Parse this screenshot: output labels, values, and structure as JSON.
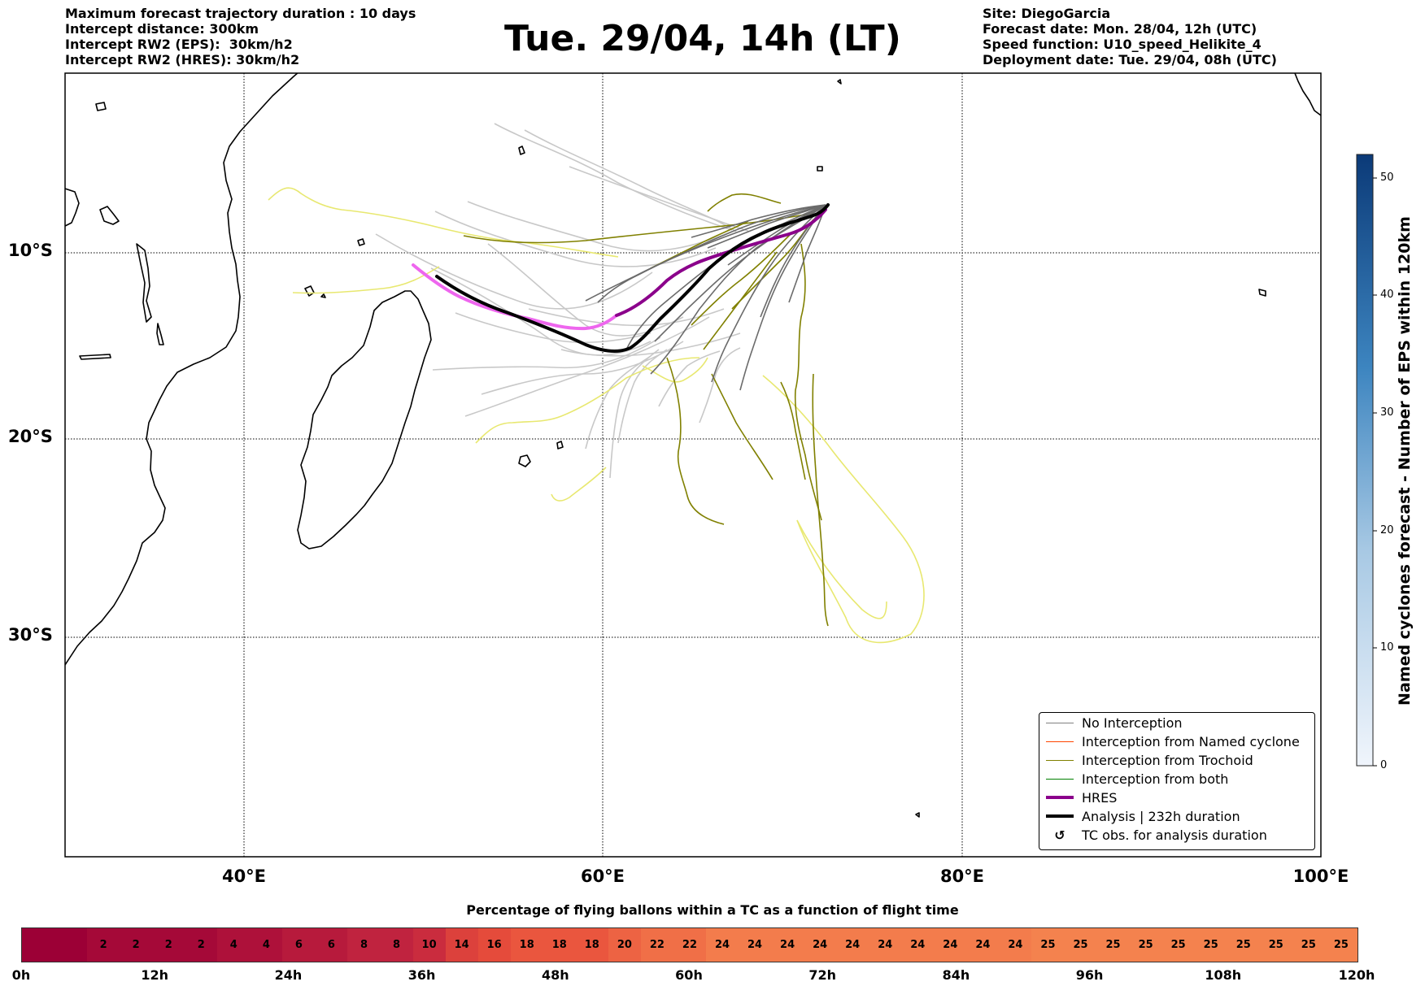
{
  "header": {
    "left_lines": [
      "Maximum forecast trajectory duration : 10 days",
      "Intercept distance: 300km",
      "Intercept RW2 (EPS):  30km/h2",
      "Intercept RW2 (HRES): 30km/h2"
    ],
    "title": "Tue. 29/04, 14h (LT)",
    "right_lines": [
      "Site: DiegoGarcia",
      "Forecast date: Mon. 28/04, 12h (UTC)",
      "Speed function: U10_speed_Helikite_4",
      "Deployment date: Tue. 29/04, 08h (UTC)"
    ]
  },
  "map": {
    "lat_labels": [
      "10°S",
      "20°S",
      "30°S"
    ],
    "lon_labels": [
      "40°E",
      "60°E",
      "80°E",
      "100°E"
    ],
    "colors": {
      "no_interception": "#808080",
      "named_cyclone": "#ff4500",
      "trochoid": "#808000",
      "both": "#008000",
      "hres": "#8b008b",
      "analysis": "#000000",
      "eps_light": "#c8c8c8",
      "yellow": "#e8e870"
    }
  },
  "legend": {
    "items": [
      {
        "label": "No Interception",
        "color": "#808080",
        "width": 1
      },
      {
        "label": "Interception from Named cyclone",
        "color": "#ff4500",
        "width": 1
      },
      {
        "label": "Interception from Trochoid",
        "color": "#808000",
        "width": 1
      },
      {
        "label": "Interception from both",
        "color": "#008000",
        "width": 1
      },
      {
        "label": "HRES",
        "color": "#8b008b",
        "width": 4
      },
      {
        "label": "Analysis | 232h duration",
        "color": "#000000",
        "width": 4
      }
    ],
    "tc_obs_label": "TC obs. for analysis duration",
    "tc_obs_symbol": "↺"
  },
  "colorbar_right": {
    "label": "Named cyclones forecast - Number of EPS within 120km",
    "ticks": [
      "0",
      "10",
      "20",
      "30",
      "40",
      "50"
    ],
    "min": 0,
    "max": 52,
    "color_low": "#f0f5fc",
    "color_high": "#0b3a78"
  },
  "percentage_bar": {
    "title": "Percentage of flying ballons within a TC as a function of flight time",
    "values": [
      "",
      "",
      "2",
      "2",
      "2",
      "2",
      "4",
      "4",
      "6",
      "6",
      "8",
      "8",
      "10",
      "14",
      "16",
      "18",
      "18",
      "18",
      "20",
      "22",
      "22",
      "24",
      "24",
      "24",
      "24",
      "24",
      "24",
      "24",
      "24",
      "24",
      "24",
      "25",
      "25",
      "25",
      "25",
      "25",
      "25",
      "25",
      "25",
      "25",
      "25"
    ],
    "color_stops": [
      "#9c0036",
      "#c2243f",
      "#e84e3b",
      "#f4824e"
    ],
    "time_ticks": [
      "0h",
      "12h",
      "24h",
      "36h",
      "48h",
      "60h",
      "72h",
      "84h",
      "96h",
      "108h",
      "120h"
    ]
  }
}
